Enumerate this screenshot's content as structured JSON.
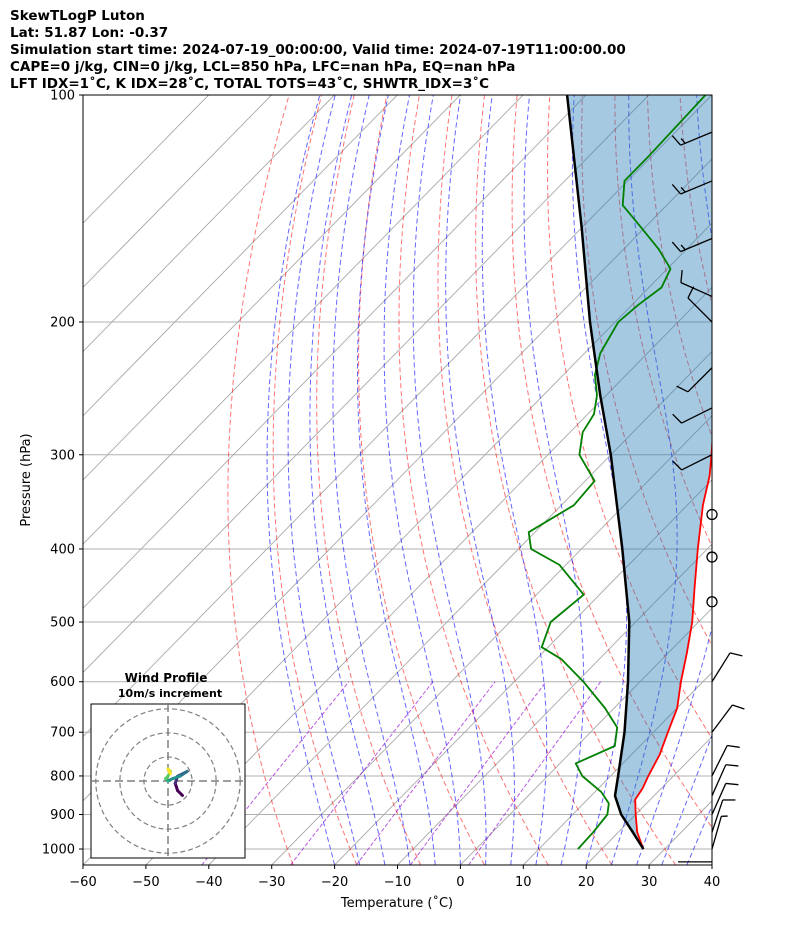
{
  "header": {
    "line1": "SkewTLogP Luton",
    "line2": "Lat: 51.87   Lon: -0.37",
    "line3": "Simulation start time: 2024-07-19_00:00:00, Valid time: 2024-07-19T11:00:00.00",
    "line4": "CAPE=0 j/kg, CIN=0 j/kg, LCL=850 hPa, LFC=nan hPa, EQ=nan hPa",
    "line5": "LFT IDX=1˚C, K IDX=28˚C, TOTAL TOTS=43˚C, SHWTR_IDX=3˚C"
  },
  "chart_data": {
    "type": "line",
    "skew_t_log_p": true,
    "xlabel": "Temperature (˚C)",
    "ylabel": "Pressure (hPa)",
    "xlim": [
      -60,
      40
    ],
    "ylim": [
      1050,
      100
    ],
    "x_ticks": [
      -60,
      -50,
      -40,
      -30,
      -20,
      -10,
      0,
      10,
      20,
      30,
      40
    ],
    "x_tick_labels": [
      "−60",
      "−50",
      "−40",
      "−30",
      "−20",
      "−10",
      "0",
      "10",
      "20",
      "30",
      "40"
    ],
    "y_ticks": [
      1000,
      900,
      800,
      700,
      600,
      500,
      400,
      300,
      200,
      100
    ],
    "y_tick_labels": [
      "1000",
      "900",
      "800",
      "700",
      "600",
      "500",
      "400",
      "300",
      "200",
      "100"
    ],
    "grid": true,
    "colors": {
      "temperature": "#ff0000",
      "dewpoint": "#008000",
      "parcel": "#000000",
      "area_fill": "#1f77b4",
      "dry_adiabats": "#ff0000",
      "moist_adiabats": "#0000ff",
      "mixing_ratio": "#9400d3",
      "isotherms": "#808080"
    },
    "series": [
      {
        "key": "temperature",
        "points": [
          {
            "p": 1000,
            "t": 26.6
          },
          {
            "p": 950,
            "t": 23.0
          },
          {
            "p": 900,
            "t": 20.0
          },
          {
            "p": 860,
            "t": 17.6
          },
          {
            "p": 830,
            "t": 17.0
          },
          {
            "p": 800,
            "t": 16.0
          },
          {
            "p": 750,
            "t": 14.5
          },
          {
            "p": 700,
            "t": 12.3
          },
          {
            "p": 650,
            "t": 10.0
          },
          {
            "p": 600,
            "t": 6.5
          },
          {
            "p": 550,
            "t": 3.0
          },
          {
            "p": 500,
            "t": -1.0
          },
          {
            "p": 450,
            "t": -6.0
          },
          {
            "p": 400,
            "t": -11.5
          },
          {
            "p": 350,
            "t": -17.5
          },
          {
            "p": 320,
            "t": -21.0
          },
          {
            "p": 300,
            "t": -24.0
          },
          {
            "p": 270,
            "t": -29.0
          },
          {
            "p": 250,
            "t": -32.5
          },
          {
            "p": 230,
            "t": -36.0
          },
          {
            "p": 210,
            "t": -40.0
          },
          {
            "p": 200,
            "t": -42.5
          },
          {
            "p": 190,
            "t": -43.0
          },
          {
            "p": 175,
            "t": -43.5
          },
          {
            "p": 160,
            "t": -43.5
          },
          {
            "p": 145,
            "t": -44.0
          },
          {
            "p": 135,
            "t": -44.5
          },
          {
            "p": 125,
            "t": -46.0
          },
          {
            "p": 115,
            "t": -48.5
          },
          {
            "p": 108,
            "t": -51.0
          },
          {
            "p": 100,
            "t": -54.5
          }
        ]
      },
      {
        "key": "dewpoint",
        "points": [
          {
            "p": 1000,
            "t": 16.2
          },
          {
            "p": 950,
            "t": 16.0
          },
          {
            "p": 900,
            "t": 15.5
          },
          {
            "p": 870,
            "t": 14.0
          },
          {
            "p": 840,
            "t": 11.0
          },
          {
            "p": 800,
            "t": 5.5
          },
          {
            "p": 770,
            "t": 2.5
          },
          {
            "p": 730,
            "t": 6.0
          },
          {
            "p": 690,
            "t": 3.5
          },
          {
            "p": 650,
            "t": -1.5
          },
          {
            "p": 600,
            "t": -9.0
          },
          {
            "p": 560,
            "t": -16.0
          },
          {
            "p": 540,
            "t": -21.0
          },
          {
            "p": 500,
            "t": -23.5
          },
          {
            "p": 460,
            "t": -22.5
          },
          {
            "p": 420,
            "t": -31.0
          },
          {
            "p": 400,
            "t": -38.0
          },
          {
            "p": 380,
            "t": -41.0
          },
          {
            "p": 350,
            "t": -38.0
          },
          {
            "p": 325,
            "t": -38.5
          },
          {
            "p": 300,
            "t": -45.0
          },
          {
            "p": 280,
            "t": -48.0
          },
          {
            "p": 265,
            "t": -49.0
          },
          {
            "p": 250,
            "t": -51.5
          },
          {
            "p": 235,
            "t": -55.0
          },
          {
            "p": 220,
            "t": -57.5
          },
          {
            "p": 200,
            "t": -59.5
          },
          {
            "p": 190,
            "t": -59.0
          },
          {
            "p": 180,
            "t": -58.0
          },
          {
            "p": 170,
            "t": -59.5
          },
          {
            "p": 160,
            "t": -64.5
          },
          {
            "p": 150,
            "t": -70.5
          },
          {
            "p": 140,
            "t": -77.0
          },
          {
            "p": 130,
            "t": -80.5
          },
          {
            "p": 120,
            "t": -80.5
          },
          {
            "p": 100,
            "t": -81.0
          }
        ]
      },
      {
        "key": "parcel",
        "points": [
          {
            "p": 1000,
            "t": 26.6
          },
          {
            "p": 950,
            "t": 22.3
          },
          {
            "p": 900,
            "t": 17.7
          },
          {
            "p": 850,
            "t": 13.8
          },
          {
            "p": 800,
            "t": 11.2
          },
          {
            "p": 700,
            "t": 5.4
          },
          {
            "p": 600,
            "t": -1.9
          },
          {
            "p": 500,
            "t": -11.0
          },
          {
            "p": 400,
            "t": -23.5
          },
          {
            "p": 300,
            "t": -40.0
          },
          {
            "p": 250,
            "t": -51.0
          },
          {
            "p": 200,
            "t": -64.0
          },
          {
            "p": 150,
            "t": -80.0
          },
          {
            "p": 100,
            "t": -103.0
          }
        ]
      }
    ],
    "wind_barbs": [
      {
        "p": 1040,
        "u": -1,
        "v": 0
      },
      {
        "p": 1000,
        "u": 2,
        "v": 7
      },
      {
        "p": 950,
        "u": 3,
        "v": 9
      },
      {
        "p": 900,
        "u": 4,
        "v": 9
      },
      {
        "p": 850,
        "u": 4,
        "v": 9
      },
      {
        "p": 800,
        "u": 4,
        "v": 8
      },
      {
        "p": 700,
        "u": 6,
        "v": 8
      },
      {
        "p": 600,
        "u": 5,
        "v": 8
      },
      {
        "p": 470,
        "u": 0,
        "v": 0
      },
      {
        "p": 410,
        "u": 0,
        "v": 0
      },
      {
        "p": 360,
        "u": 0,
        "v": 0
      },
      {
        "p": 300,
        "u": -10,
        "v": -5
      },
      {
        "p": 260,
        "u": -10,
        "v": -5
      },
      {
        "p": 230,
        "u": -7,
        "v": -7
      },
      {
        "p": 200,
        "u": -7,
        "v": 7
      },
      {
        "p": 185,
        "u": -9,
        "v": 4
      },
      {
        "p": 155,
        "u": -12,
        "v": -5
      },
      {
        "p": 130,
        "u": -12,
        "v": -5
      },
      {
        "p": 112,
        "u": -12,
        "v": -5
      }
    ],
    "hodograph": {
      "title": "Wind Profile",
      "subtitle": "10m/s increment",
      "rings": [
        10,
        20,
        30
      ],
      "max_speed": 32,
      "points": [
        {
          "u": 6,
          "v": -6
        },
        {
          "u": 4,
          "v": -4
        },
        {
          "u": 3,
          "v": -1
        },
        {
          "u": 4,
          "v": 2
        },
        {
          "u": 6,
          "v": 3
        },
        {
          "u": 8,
          "v": 4
        },
        {
          "u": 5,
          "v": 2
        },
        {
          "u": 2,
          "v": 1
        },
        {
          "u": 0,
          "v": 0
        },
        {
          "u": -1,
          "v": 1
        },
        {
          "u": 0,
          "v": 2
        },
        {
          "u": 1,
          "v": 4
        },
        {
          "u": 0,
          "v": 5
        },
        {
          "u": 1,
          "v": 3
        }
      ]
    }
  }
}
